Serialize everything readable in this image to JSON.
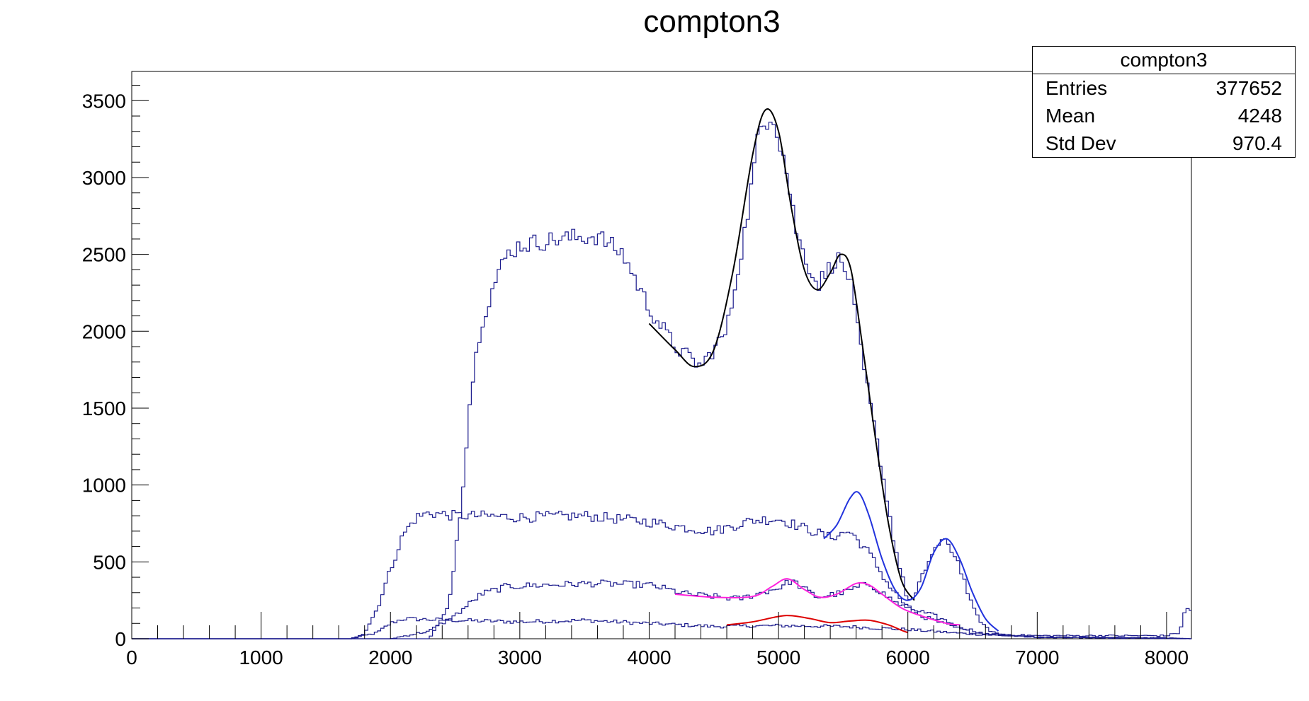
{
  "chart_data": {
    "type": "line",
    "title": "compton3",
    "xlabel": "",
    "ylabel": "",
    "xlim": [
      0,
      8192
    ],
    "ylim": [
      0,
      3690
    ],
    "x_ticks": [
      0,
      1000,
      2000,
      3000,
      4000,
      5000,
      6000,
      7000,
      8000
    ],
    "y_ticks": [
      0,
      500,
      1000,
      1500,
      2000,
      2500,
      3000,
      3500
    ],
    "grid": false,
    "stats": {
      "title": "compton3",
      "rows": [
        {
          "label": "Entries",
          "value": "377652"
        },
        {
          "label": "Mean",
          "value": "4248"
        },
        {
          "label": "Std Dev",
          "value": "970.4"
        }
      ]
    },
    "series": [
      {
        "kind": "histogram",
        "color": "#1a1a8c",
        "points": [
          [
            0,
            0
          ],
          [
            1700,
            0
          ],
          [
            1900,
            40
          ],
          [
            2000,
            100
          ],
          [
            2100,
            130
          ],
          [
            2500,
            120
          ],
          [
            3000,
            110
          ],
          [
            3500,
            120
          ],
          [
            4000,
            100
          ],
          [
            4500,
            80
          ],
          [
            5000,
            85
          ],
          [
            5500,
            80
          ],
          [
            6000,
            60
          ],
          [
            6500,
            30
          ],
          [
            7000,
            10
          ],
          [
            8000,
            5
          ],
          [
            8192,
            0
          ]
        ]
      },
      {
        "kind": "histogram",
        "color": "#1a1a8c",
        "points": [
          [
            0,
            0
          ],
          [
            1700,
            0
          ],
          [
            1800,
            40
          ],
          [
            1900,
            200
          ],
          [
            2000,
            450
          ],
          [
            2100,
            680
          ],
          [
            2200,
            790
          ],
          [
            2300,
            820
          ],
          [
            2500,
            800
          ],
          [
            2700,
            800
          ],
          [
            3000,
            790
          ],
          [
            3500,
            800
          ],
          [
            4000,
            760
          ],
          [
            4300,
            720
          ],
          [
            4500,
            700
          ],
          [
            4800,
            770
          ],
          [
            5000,
            780
          ],
          [
            5200,
            720
          ],
          [
            5400,
            660
          ],
          [
            5550,
            700
          ],
          [
            5700,
            560
          ],
          [
            5850,
            350
          ],
          [
            6000,
            200
          ],
          [
            6200,
            150
          ],
          [
            6400,
            80
          ],
          [
            6600,
            30
          ],
          [
            7000,
            10
          ],
          [
            8000,
            5
          ],
          [
            8192,
            0
          ]
        ]
      },
      {
        "kind": "histogram",
        "color": "#1a1a8c",
        "points": [
          [
            0,
            0
          ],
          [
            2000,
            0
          ],
          [
            2300,
            50
          ],
          [
            2500,
            150
          ],
          [
            2700,
            290
          ],
          [
            2900,
            340
          ],
          [
            3200,
            350
          ],
          [
            3600,
            360
          ],
          [
            4000,
            350
          ],
          [
            4300,
            290
          ],
          [
            4700,
            260
          ],
          [
            5000,
            330
          ],
          [
            5100,
            380
          ],
          [
            5300,
            270
          ],
          [
            5500,
            300
          ],
          [
            5700,
            360
          ],
          [
            5900,
            240
          ],
          [
            6100,
            150
          ],
          [
            6300,
            90
          ],
          [
            6500,
            40
          ],
          [
            7000,
            10
          ],
          [
            8192,
            0
          ]
        ]
      },
      {
        "kind": "histogram",
        "color": "#1a1a8c",
        "points": [
          [
            0,
            0
          ],
          [
            2300,
            0
          ],
          [
            2450,
            200
          ],
          [
            2550,
            900
          ],
          [
            2620,
            1600
          ],
          [
            2700,
            2050
          ],
          [
            2800,
            2300
          ],
          [
            2900,
            2500
          ],
          [
            3000,
            2560
          ],
          [
            3300,
            2600
          ],
          [
            3600,
            2620
          ],
          [
            3800,
            2500
          ],
          [
            4000,
            2150
          ],
          [
            4200,
            1900
          ],
          [
            4400,
            1770
          ],
          [
            4600,
            2000
          ],
          [
            4750,
            2700
          ],
          [
            4850,
            3300
          ],
          [
            4950,
            3430
          ],
          [
            5050,
            3100
          ],
          [
            5150,
            2600
          ],
          [
            5300,
            2300
          ],
          [
            5450,
            2480
          ],
          [
            5550,
            2350
          ],
          [
            5650,
            1800
          ],
          [
            5800,
            1100
          ],
          [
            5900,
            600
          ],
          [
            6000,
            250
          ],
          [
            6050,
            260
          ],
          [
            6100,
            380
          ],
          [
            6200,
            580
          ],
          [
            6300,
            640
          ],
          [
            6400,
            480
          ],
          [
            6500,
            200
          ],
          [
            6600,
            70
          ],
          [
            6700,
            30
          ],
          [
            7000,
            20
          ],
          [
            8000,
            20
          ],
          [
            8100,
            40
          ],
          [
            8150,
            200
          ],
          [
            8192,
            180
          ]
        ]
      }
    ],
    "fits": [
      {
        "color": "#000000",
        "points": [
          [
            4000,
            2050
          ],
          [
            4200,
            1880
          ],
          [
            4350,
            1770
          ],
          [
            4500,
            1880
          ],
          [
            4650,
            2400
          ],
          [
            4800,
            3150
          ],
          [
            4900,
            3440
          ],
          [
            5000,
            3300
          ],
          [
            5100,
            2800
          ],
          [
            5200,
            2400
          ],
          [
            5300,
            2270
          ],
          [
            5400,
            2380
          ],
          [
            5480,
            2500
          ],
          [
            5560,
            2400
          ],
          [
            5650,
            1900
          ],
          [
            5750,
            1300
          ],
          [
            5850,
            750
          ],
          [
            5950,
            380
          ],
          [
            6050,
            250
          ]
        ]
      },
      {
        "color": "#2233dd",
        "points": [
          [
            5350,
            650
          ],
          [
            5450,
            740
          ],
          [
            5550,
            910
          ],
          [
            5620,
            950
          ],
          [
            5700,
            800
          ],
          [
            5800,
            520
          ],
          [
            5900,
            320
          ],
          [
            6000,
            250
          ],
          [
            6100,
            330
          ],
          [
            6200,
            560
          ],
          [
            6300,
            650
          ],
          [
            6400,
            520
          ],
          [
            6500,
            300
          ],
          [
            6600,
            130
          ],
          [
            6700,
            50
          ]
        ]
      },
      {
        "color": "#ff22dd",
        "points": [
          [
            4200,
            290
          ],
          [
            4500,
            270
          ],
          [
            4800,
            275
          ],
          [
            4950,
            340
          ],
          [
            5070,
            390
          ],
          [
            5200,
            320
          ],
          [
            5320,
            270
          ],
          [
            5450,
            290
          ],
          [
            5600,
            360
          ],
          [
            5700,
            350
          ],
          [
            5800,
            290
          ],
          [
            5950,
            200
          ],
          [
            6100,
            150
          ],
          [
            6300,
            100
          ],
          [
            6400,
            90
          ]
        ]
      },
      {
        "color": "#dd0000",
        "points": [
          [
            4600,
            90
          ],
          [
            4800,
            110
          ],
          [
            5000,
            145
          ],
          [
            5100,
            150
          ],
          [
            5250,
            130
          ],
          [
            5400,
            105
          ],
          [
            5550,
            115
          ],
          [
            5700,
            120
          ],
          [
            5850,
            90
          ],
          [
            5950,
            55
          ],
          [
            6000,
            40
          ]
        ]
      }
    ]
  }
}
